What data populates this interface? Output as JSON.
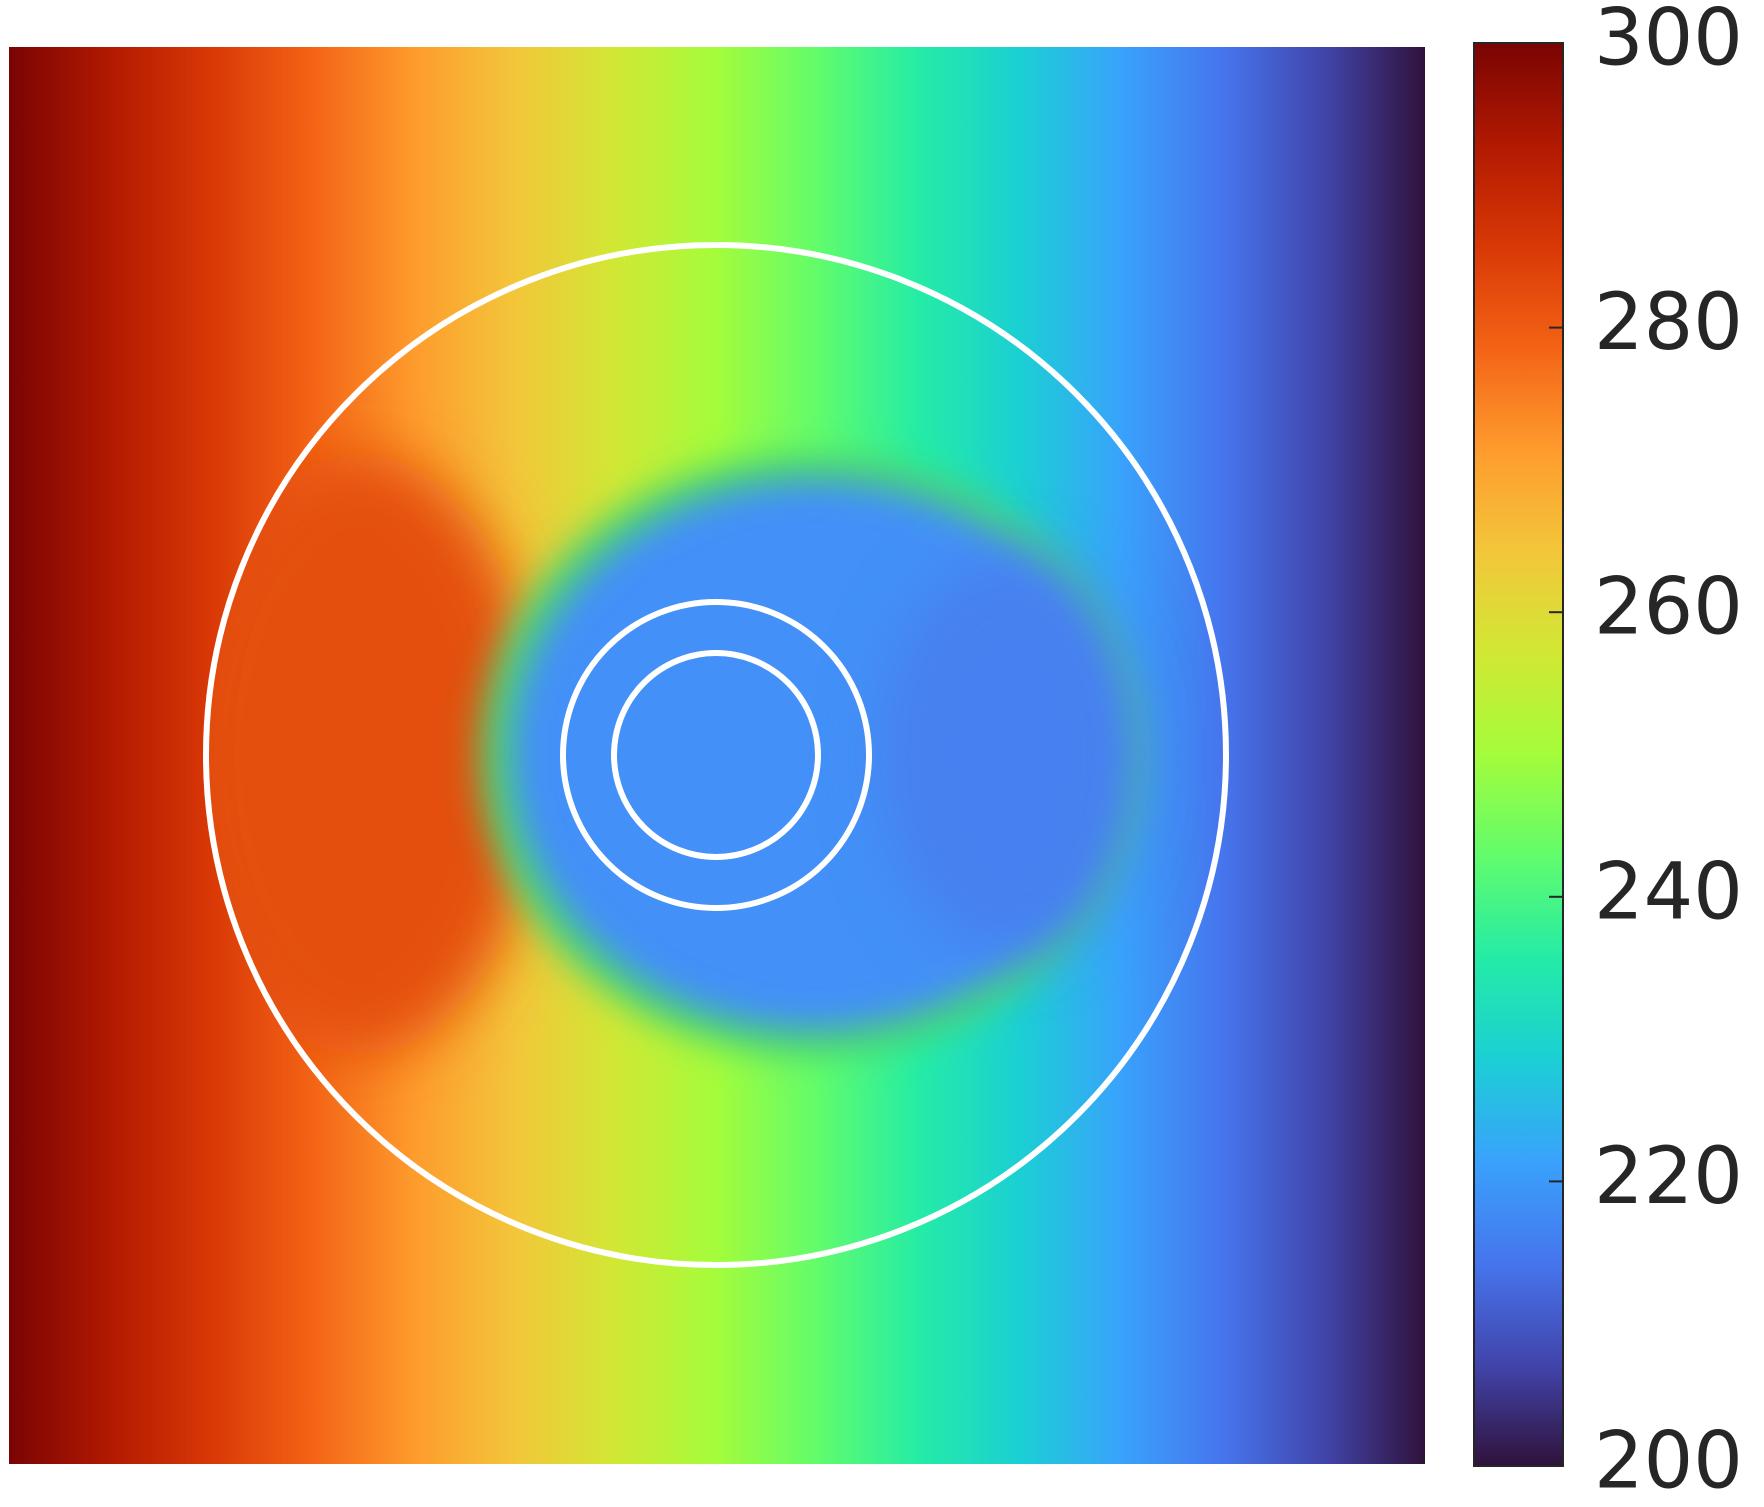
{
  "chart_data": {
    "type": "heatmap",
    "colorbar": {
      "ylim": [
        200,
        300
      ],
      "yticks": [
        200,
        220,
        240,
        260,
        280,
        300
      ]
    },
    "colormap": [
      "#30123b",
      "#4145ab",
      "#4675ed",
      "#39a2fc",
      "#1bcfd4",
      "#24eca6",
      "#61fc6c",
      "#a4fc3b",
      "#d1e834",
      "#f3c63a",
      "#fe9b2d",
      "#f36315",
      "#d93806",
      "#b11901",
      "#7a0403"
    ]
  }
}
